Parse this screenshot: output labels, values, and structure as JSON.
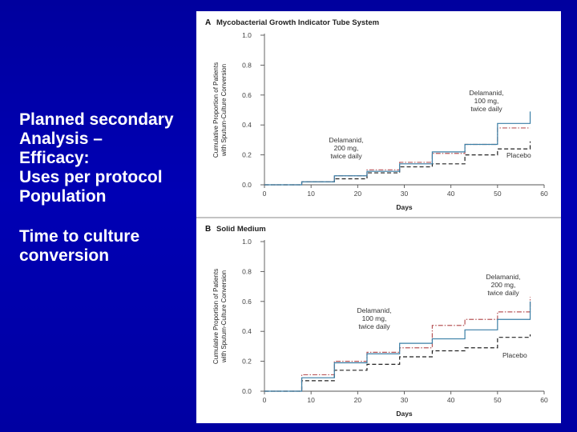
{
  "slide": {
    "heading_lines": [
      "Planned secondary",
      "Analysis –",
      "Efficacy:",
      "Uses per protocol",
      "Population"
    ],
    "subheading_lines": [
      "Time to culture",
      "conversion"
    ]
  },
  "colors": {
    "background": "#0000a8",
    "text": "#ffffff",
    "delamanid_100": "#3a7fa6",
    "delamanid_200": "#b8575a",
    "placebo": "#222222"
  },
  "chart_data": [
    {
      "type": "line",
      "panel_letter": "A",
      "title": "Mycobacterial Growth Indicator Tube System",
      "xlabel": "Days",
      "ylabel": [
        "Cumulative Proportion of Patients",
        "with Sputum-Culture Conversion"
      ],
      "xlim": [
        0,
        60
      ],
      "ylim": [
        0,
        1.0
      ],
      "x_ticks": [
        "0",
        "10",
        "20",
        "30",
        "40",
        "50",
        "60"
      ],
      "y_ticks": [
        "0.0",
        "0.2",
        "0.4",
        "0.6",
        "0.8",
        "1.0"
      ],
      "grid": false,
      "series": [
        {
          "name": "Delamanid, 100 mg, twice daily",
          "style": "solid",
          "color": "#3a7fa6",
          "x": [
            0,
            8,
            15,
            22,
            29,
            36,
            43,
            50,
            57
          ],
          "y": [
            0,
            0.02,
            0.06,
            0.09,
            0.14,
            0.22,
            0.27,
            0.41,
            0.49
          ]
        },
        {
          "name": "Delamanid, 200 mg, twice daily",
          "style": "dashdot",
          "color": "#b8575a",
          "x": [
            0,
            8,
            15,
            22,
            29,
            36,
            43,
            50,
            57
          ],
          "y": [
            0,
            0.02,
            0.06,
            0.1,
            0.15,
            0.21,
            0.27,
            0.38,
            0.38
          ]
        },
        {
          "name": "Placebo",
          "style": "dashed",
          "color": "#222222",
          "x": [
            0,
            8,
            15,
            22,
            29,
            36,
            43,
            50,
            57
          ],
          "y": [
            0,
            0.02,
            0.04,
            0.08,
            0.12,
            0.14,
            0.2,
            0.24,
            0.29
          ]
        }
      ],
      "annotations": [
        {
          "lines": [
            "Delamanid,",
            "100 mg,",
            "twice daily"
          ]
        },
        {
          "lines": [
            "Delamanid,",
            "200 mg,",
            "twice daily"
          ]
        },
        {
          "lines": [
            "Placebo"
          ]
        }
      ]
    },
    {
      "type": "line",
      "panel_letter": "B",
      "title": "Solid Medium",
      "xlabel": "Days",
      "ylabel": [
        "Cumulative Proportion of Patients",
        "with Sputum-Culture Conversion"
      ],
      "xlim": [
        0,
        60
      ],
      "ylim": [
        0,
        1.0
      ],
      "x_ticks": [
        "0",
        "10",
        "20",
        "30",
        "40",
        "50",
        "60"
      ],
      "y_ticks": [
        "0.0",
        "0.2",
        "0.4",
        "0.6",
        "0.8",
        "1.0"
      ],
      "grid": false,
      "series": [
        {
          "name": "Delamanid, 100 mg, twice daily",
          "style": "solid",
          "color": "#3a7fa6",
          "x": [
            0,
            8,
            15,
            22,
            29,
            36,
            43,
            50,
            57
          ],
          "y": [
            0,
            0.09,
            0.19,
            0.25,
            0.32,
            0.35,
            0.41,
            0.48,
            0.6
          ]
        },
        {
          "name": "Delamanid, 200 mg, twice daily",
          "style": "dashdot",
          "color": "#b8575a",
          "x": [
            0,
            8,
            15,
            22,
            29,
            36,
            43,
            50,
            57
          ],
          "y": [
            0,
            0.11,
            0.2,
            0.26,
            0.29,
            0.44,
            0.48,
            0.53,
            0.63
          ]
        },
        {
          "name": "Placebo",
          "style": "dashed",
          "color": "#222222",
          "x": [
            0,
            8,
            15,
            22,
            29,
            36,
            43,
            50,
            57
          ],
          "y": [
            0,
            0.07,
            0.14,
            0.18,
            0.23,
            0.27,
            0.29,
            0.36,
            0.38
          ]
        }
      ],
      "annotations": [
        {
          "lines": [
            "Delamanid,",
            "200 mg,",
            "twice daily"
          ]
        },
        {
          "lines": [
            "Delamanid,",
            "100 mg,",
            "twice daily"
          ]
        },
        {
          "lines": [
            "Placebo"
          ]
        }
      ]
    }
  ]
}
